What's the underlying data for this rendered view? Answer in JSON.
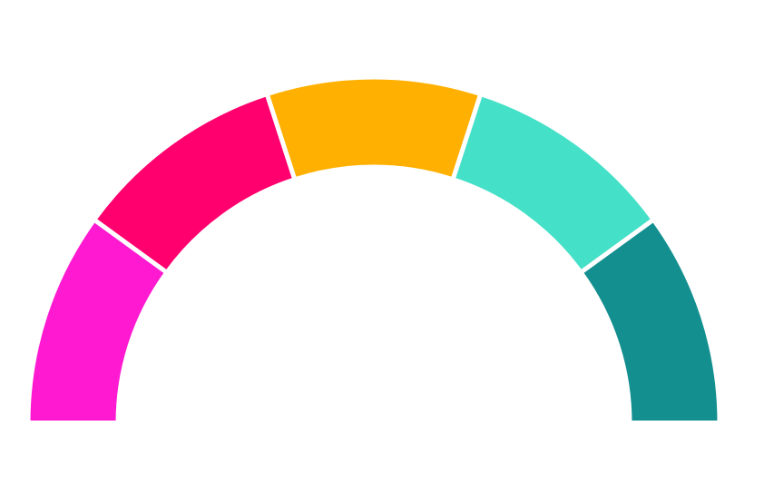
{
  "chart_data": {
    "type": "pie",
    "variant": "semicircle-donut",
    "title": "",
    "categories": [
      "",
      "",
      "",
      "",
      ""
    ],
    "series": [
      {
        "values": [
          1,
          1,
          1,
          1,
          1
        ],
        "colors": [
          "#ff1ad1",
          "#ff006e",
          "#ffb000",
          "#45e0c8",
          "#138f8f"
        ]
      }
    ],
    "start_angle_deg": 180,
    "end_angle_deg": 360,
    "legend": "none",
    "data_labels": false
  }
}
